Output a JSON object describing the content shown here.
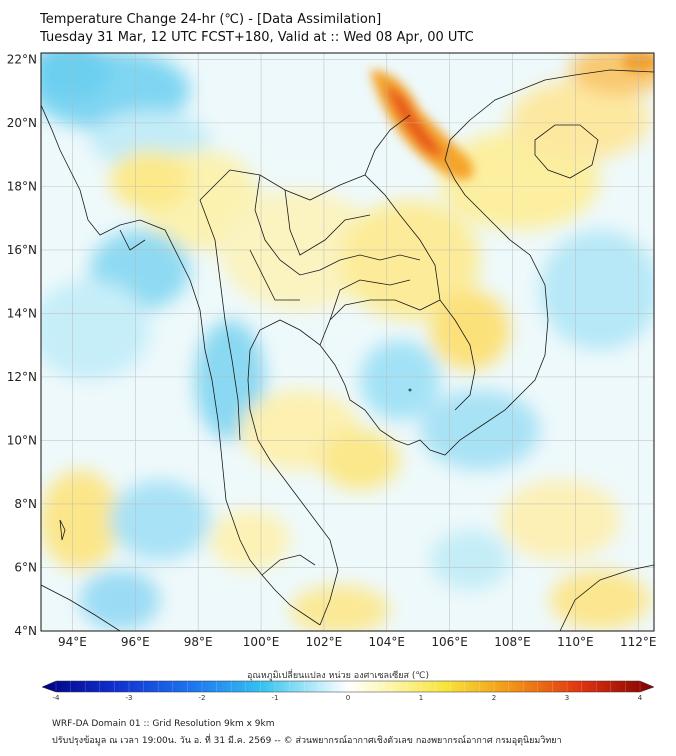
{
  "header": {
    "title": "Temperature Change 24-hr (℃) - [Data Assimilation]",
    "subtitle": "Tuesday 31 Mar, 12 UTC FCST+180, Valid at :: Wed 08 Apr, 00 UTC"
  },
  "map": {
    "lat_labels": [
      "22°N",
      "20°N",
      "18°N",
      "16°N",
      "14°N",
      "12°N",
      "10°N",
      "8°N",
      "6°N",
      "4°N"
    ],
    "lon_labels": [
      "94°E",
      "96°E",
      "98°E",
      "100°E",
      "102°E",
      "104°E",
      "106°E",
      "108°E",
      "110°E",
      "112°E"
    ],
    "lat_range": [
      4,
      22.2
    ],
    "lon_range": [
      93,
      112.5
    ],
    "grid": true
  },
  "colorbar": {
    "title": "อุณหภูมิเปลี่ยนแปลง หน่วย องศาเซลเซียส (℃)",
    "ticks": [
      "-4",
      "-3",
      "-2",
      "-1",
      "0",
      "1",
      "2",
      "3",
      "4"
    ],
    "range": [
      -4,
      4
    ],
    "colors": [
      "#000080",
      "#1030d0",
      "#1e78f0",
      "#36c3f0",
      "#b8ecf8",
      "#ffffff",
      "#fdf7b8",
      "#f7e43a",
      "#f29a18",
      "#e03410",
      "#800000"
    ]
  },
  "footer": {
    "line1": "WRF-DA Domain 01 :: Grid Resolution 9km x 9km",
    "line2": "ปรับปรุงข้อมูล ณ เวลา 19:00น. วัน อ. ที่ 31 มี.ค. 2569 -- © ส่วนพยากรณ์อากาศเชิงตัวเลข กองพยากรณ์อากาศ กรมอุตุนิยมวิทยา"
  }
}
